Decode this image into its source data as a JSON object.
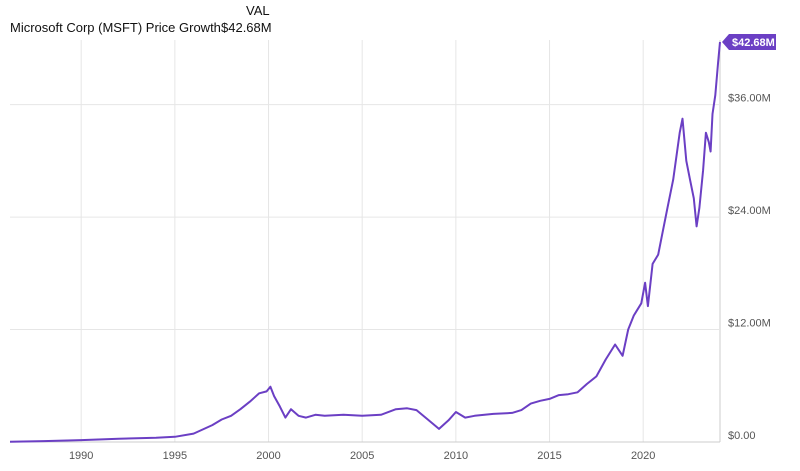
{
  "legend": {
    "column_header": "VAL",
    "series_name": "Microsoft Corp (MSFT) Price Growth",
    "series_value": "$42.68M"
  },
  "colors": {
    "line": "#6b3fc4",
    "badge": "#6b3fc4",
    "grid": "#e6e6e6",
    "axis": "#cccccc"
  },
  "chart_data": {
    "type": "line",
    "title": "Microsoft Corp (MSFT) Price Growth",
    "xlabel": "",
    "ylabel": "",
    "xlim": [
      1986.2,
      2024.1
    ],
    "ylim": [
      0,
      42.68
    ],
    "x_ticks": [
      1990,
      1995,
      2000,
      2005,
      2010,
      2015,
      2020
    ],
    "x_tick_labels": [
      "1990",
      "1995",
      "2000",
      "2005",
      "2010",
      "2015",
      "2020"
    ],
    "y_ticks": [
      0,
      12,
      24,
      36
    ],
    "y_tick_labels": [
      "$0.00",
      "$12.00M",
      "$24.00M",
      "$36.00M"
    ],
    "end_label": "$42.68M",
    "grid": true,
    "series": [
      {
        "name": "Microsoft Corp (MSFT) Price Growth",
        "unit": "$M",
        "x": [
          1986.2,
          1988,
          1990,
          1992,
          1994,
          1995,
          1996,
          1997,
          1997.5,
          1998,
          1998.5,
          1999,
          1999.5,
          1999.9,
          2000.1,
          2000.3,
          2000.6,
          2000.9,
          2001.2,
          2001.6,
          2002,
          2002.5,
          2003,
          2004,
          2005,
          2006,
          2006.8,
          2007.4,
          2007.9,
          2008.5,
          2009.1,
          2009.6,
          2010,
          2010.5,
          2011,
          2012,
          2013,
          2013.5,
          2014,
          2014.5,
          2015,
          2015.5,
          2016,
          2016.5,
          2017,
          2017.5,
          2018,
          2018.5,
          2018.9,
          2019.2,
          2019.5,
          2019.9,
          2020.1,
          2020.25,
          2020.5,
          2020.8,
          2021,
          2021.3,
          2021.6,
          2021.95,
          2022.1,
          2022.3,
          2022.5,
          2022.7,
          2022.85,
          2023,
          2023.2,
          2023.35,
          2023.5,
          2023.6,
          2023.7,
          2023.85,
          2024,
          2024.1
        ],
        "y": [
          0.02,
          0.1,
          0.2,
          0.35,
          0.45,
          0.55,
          0.9,
          1.8,
          2.4,
          2.8,
          3.5,
          4.3,
          5.2,
          5.4,
          5.9,
          4.9,
          3.8,
          2.6,
          3.5,
          2.8,
          2.6,
          2.9,
          2.8,
          2.9,
          2.8,
          2.9,
          3.5,
          3.6,
          3.4,
          2.4,
          1.4,
          2.3,
          3.2,
          2.6,
          2.8,
          3.0,
          3.1,
          3.4,
          4.1,
          4.4,
          4.6,
          5.0,
          5.1,
          5.3,
          6.2,
          7.0,
          8.8,
          10.4,
          9.2,
          12.0,
          13.5,
          14.8,
          17.0,
          14.5,
          19.0,
          20.0,
          22.0,
          25.0,
          28.0,
          33.0,
          34.5,
          30.0,
          28.0,
          26.0,
          23.0,
          25.0,
          29.0,
          33.0,
          32.0,
          31.0,
          35.0,
          37.0,
          40.5,
          42.68
        ]
      }
    ]
  }
}
